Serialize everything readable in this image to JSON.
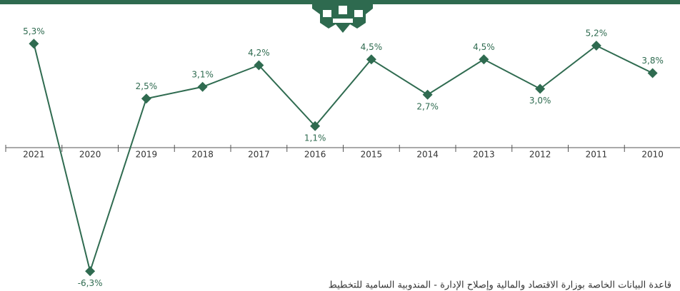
{
  "chart_data": {
    "type": "line",
    "categories": [
      "2021",
      "2020",
      "2019",
      "2018",
      "2017",
      "2016",
      "2015",
      "2014",
      "2013",
      "2012",
      "2011",
      "2010"
    ],
    "series": [
      {
        "color": "#2f6b50",
        "values": [
          5.3,
          -6.3,
          2.5,
          3.1,
          4.2,
          1.1,
          4.5,
          2.7,
          4.5,
          3.0,
          5.2,
          3.8
        ],
        "value_labels": [
          "5,3%",
          "-6,3%",
          "2,5%",
          "3,1%",
          "4,2%",
          "1,1%",
          "4,5%",
          "2,7%",
          "4,5%",
          "3,0%",
          "5,2%",
          "3,8%"
        ]
      }
    ],
    "ylim": [
      -6.8,
      6
    ]
  },
  "source": "قاعدة البيانات الخاصة بوزارة الاقتصاد والمالية وإصلاح الإدارة - المندوبية السامية للتخطيط"
}
